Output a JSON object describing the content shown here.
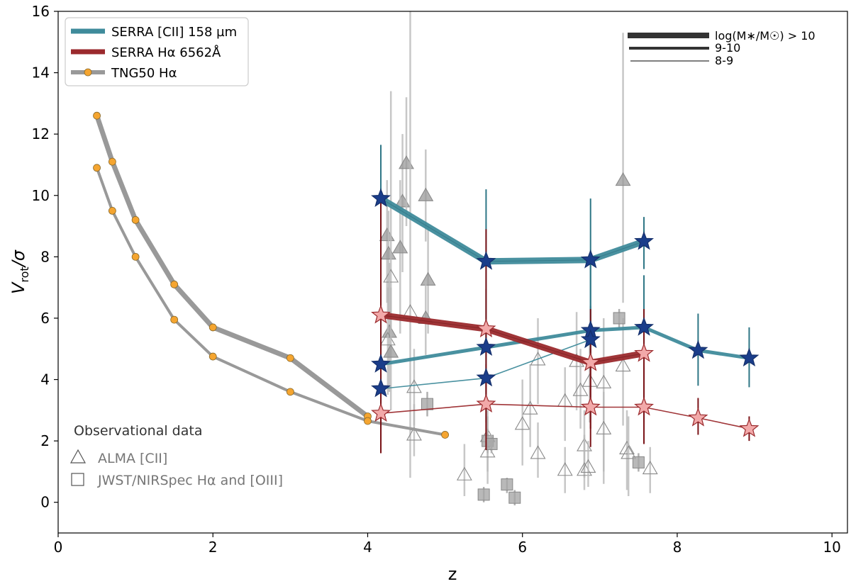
{
  "chart_data": {
    "type": "line",
    "xlabel": "z",
    "ylabel_main": "V",
    "ylabel_sub": "rot",
    "ylabel_tail": "/σ",
    "xlim": [
      0,
      10.2
    ],
    "ylim": [
      -1,
      16
    ],
    "xticks": [
      0,
      2,
      4,
      6,
      8,
      10
    ],
    "yticks": [
      0,
      2,
      4,
      6,
      8,
      10,
      12,
      14,
      16
    ],
    "legend": {
      "position": "top-left",
      "entries": [
        {
          "label": "SERRA [CII] 158 µm",
          "color": "#3f8b9b"
        },
        {
          "label": "SERRA Hα 6562Å",
          "color": "#9b2a2d"
        },
        {
          "label": "TNG50 Hα",
          "color": "#999999",
          "marker": "#f5a530"
        }
      ]
    },
    "mass_legend": {
      "position": "top-right",
      "entries": [
        {
          "label": "log(M∗/M☉) > 10",
          "bin": "high"
        },
        {
          "label": "9-10",
          "bin": "mid"
        },
        {
          "label": "8-9",
          "bin": "low"
        }
      ]
    },
    "obs_legend": {
      "title": "Observational data",
      "entries": [
        {
          "label": "ALMA [CII]",
          "marker": "triangle"
        },
        {
          "label": "JWST/NIRSpec Hα and [OIII]",
          "marker": "square"
        }
      ]
    },
    "series": [
      {
        "name": "TNG50 Hα",
        "bin": "mid",
        "color": "#999999",
        "marker_color": "#f5a530",
        "x": [
          0.5,
          0.7,
          1.0,
          1.5,
          2.0,
          3.0,
          4.0
        ],
        "y": [
          12.6,
          11.1,
          9.2,
          7.1,
          5.7,
          4.7,
          2.8
        ]
      },
      {
        "name": "TNG50 Hα",
        "bin": "low",
        "color": "#999999",
        "marker_color": "#f5a530",
        "x": [
          0.5,
          0.7,
          1.0,
          1.5,
          2.0,
          3.0,
          4.0,
          5.0
        ],
        "y": [
          10.9,
          9.5,
          8.0,
          5.95,
          4.75,
          3.6,
          2.65,
          2.2
        ]
      },
      {
        "name": "SERRA [CII] 158 µm",
        "bin": "high",
        "color": "#3f8b9b",
        "x": [
          4.17,
          5.53,
          6.88,
          7.57
        ],
        "y": [
          9.9,
          7.85,
          7.9,
          8.5
        ],
        "err_lo": [
          8.1,
          5.3,
          5.6,
          7.6
        ],
        "err_hi": [
          11.65,
          10.2,
          9.9,
          9.3
        ]
      },
      {
        "name": "SERRA [CII] 158 µm",
        "bin": "mid",
        "color": "#3f8b9b",
        "x": [
          4.17,
          5.53,
          6.88,
          7.57,
          8.27,
          8.93
        ],
        "y": [
          4.5,
          5.05,
          5.6,
          5.7,
          4.95,
          4.7
        ],
        "err_lo": [
          2.5,
          3.1,
          4.5,
          4.0,
          3.8,
          3.75
        ],
        "err_hi": [
          6.3,
          6.95,
          8.0,
          7.4,
          6.15,
          5.7
        ]
      },
      {
        "name": "SERRA [CII] 158 µm",
        "bin": "low",
        "color": "#3f8b9b",
        "x": [
          4.17,
          5.53,
          6.88
        ],
        "y": [
          3.7,
          4.05,
          5.3
        ],
        "err_lo": [
          2.0,
          2.6,
          4.3
        ],
        "err_hi": [
          5.3,
          5.7,
          6.4
        ]
      },
      {
        "name": "SERRA Hα 6562Å",
        "bin": "high",
        "color": "#9b2a2d",
        "x": [
          4.17,
          5.53,
          6.88,
          7.57
        ],
        "y": [
          6.1,
          5.65,
          4.55,
          4.85
        ],
        "err_lo": [
          1.6,
          2.2,
          2.4,
          2.6
        ],
        "err_hi": [
          9.9,
          8.9,
          6.3,
          6.3
        ]
      },
      {
        "name": "SERRA Hα 6562Å",
        "bin": "low",
        "color": "#9b2a2d",
        "x": [
          4.17,
          5.53,
          6.88,
          7.57,
          8.27,
          8.93
        ],
        "y": [
          2.9,
          3.2,
          3.1,
          3.1,
          2.75,
          2.4
        ],
        "err_lo": [
          1.6,
          1.7,
          1.8,
          1.9,
          2.2,
          2.0
        ],
        "err_hi": [
          4.2,
          4.5,
          5.0,
          4.4,
          3.4,
          2.8
        ]
      }
    ],
    "obs_alma": [
      {
        "x": 4.25,
        "y": 8.7,
        "filled": true,
        "lo": 6.5,
        "hi": 10.5
      },
      {
        "x": 4.27,
        "y": 8.1,
        "filled": true,
        "lo": 6.0,
        "hi": 9.5
      },
      {
        "x": 4.3,
        "y": 7.35,
        "filled": false,
        "lo": 5.5,
        "hi": 13.4
      },
      {
        "x": 4.28,
        "y": 5.55,
        "filled": true,
        "lo": 3.6,
        "hi": 7.8
      },
      {
        "x": 4.26,
        "y": 5.3,
        "filled": false,
        "lo": 3.5,
        "hi": 7.0
      },
      {
        "x": 4.3,
        "y": 4.9,
        "filled": true,
        "lo": 3.0,
        "hi": 7.0
      },
      {
        "x": 4.45,
        "y": 9.8,
        "filled": true,
        "lo": 7.5,
        "hi": 12.0
      },
      {
        "x": 4.5,
        "y": 11.05,
        "filled": true,
        "lo": 9.0,
        "hi": 13.2
      },
      {
        "x": 4.42,
        "y": 8.3,
        "filled": true,
        "lo": 5.5,
        "hi": 10.5
      },
      {
        "x": 4.55,
        "y": 6.2,
        "filled": false,
        "lo": 0.8,
        "hi": 16.0
      },
      {
        "x": 4.75,
        "y": 10.0,
        "filled": true,
        "lo": 8.5,
        "hi": 11.5
      },
      {
        "x": 4.78,
        "y": 7.25,
        "filled": true,
        "lo": 5.5,
        "hi": 9.0
      },
      {
        "x": 4.75,
        "y": 6.0,
        "filled": true,
        "lo": 4.8,
        "hi": 7.2
      },
      {
        "x": 4.6,
        "y": 3.75,
        "filled": false,
        "lo": 2.5,
        "hi": 5.0
      },
      {
        "x": 4.6,
        "y": 2.2,
        "filled": false,
        "lo": 1.5,
        "hi": 3.2
      },
      {
        "x": 5.25,
        "y": 0.9,
        "filled": false,
        "lo": 0.2,
        "hi": 1.9
      },
      {
        "x": 5.55,
        "y": 2.15,
        "filled": false,
        "lo": 1.0,
        "hi": 3.0
      },
      {
        "x": 5.55,
        "y": 1.65,
        "filled": false,
        "lo": 0.6,
        "hi": 2.8
      },
      {
        "x": 6.0,
        "y": 2.55,
        "filled": false,
        "lo": 1.2,
        "hi": 4.0
      },
      {
        "x": 6.1,
        "y": 3.05,
        "filled": false,
        "lo": 1.8,
        "hi": 4.5
      },
      {
        "x": 6.2,
        "y": 4.65,
        "filled": false,
        "lo": 3.2,
        "hi": 6.0
      },
      {
        "x": 6.2,
        "y": 1.6,
        "filled": false,
        "lo": 0.8,
        "hi": 2.6
      },
      {
        "x": 6.55,
        "y": 1.05,
        "filled": false,
        "lo": 0.3,
        "hi": 1.8
      },
      {
        "x": 6.55,
        "y": 3.3,
        "filled": false,
        "lo": 2.0,
        "hi": 4.4
      },
      {
        "x": 6.7,
        "y": 4.6,
        "filled": false,
        "lo": 3.0,
        "hi": 6.2
      },
      {
        "x": 6.75,
        "y": 3.65,
        "filled": false,
        "lo": 2.4,
        "hi": 5.0
      },
      {
        "x": 6.8,
        "y": 1.85,
        "filled": false,
        "lo": 0.8,
        "hi": 3.0
      },
      {
        "x": 6.8,
        "y": 1.05,
        "filled": false,
        "lo": 0.4,
        "hi": 2.2
      },
      {
        "x": 6.85,
        "y": 1.15,
        "filled": false,
        "lo": 0.5,
        "hi": 2.0
      },
      {
        "x": 6.87,
        "y": 3.95,
        "filled": false,
        "lo": 2.6,
        "hi": 5.3
      },
      {
        "x": 7.05,
        "y": 3.9,
        "filled": false,
        "lo": 0.6,
        "hi": 6.0
      },
      {
        "x": 7.05,
        "y": 2.4,
        "filled": false,
        "lo": 1.0,
        "hi": 3.6
      },
      {
        "x": 7.3,
        "y": 10.5,
        "filled": true,
        "lo": 6.5,
        "hi": 15.3
      },
      {
        "x": 7.3,
        "y": 4.45,
        "filled": false,
        "lo": 2.5,
        "hi": 6.0
      },
      {
        "x": 7.35,
        "y": 1.75,
        "filled": false,
        "lo": 0.4,
        "hi": 3.0
      },
      {
        "x": 7.37,
        "y": 1.6,
        "filled": false,
        "lo": 0.2,
        "hi": 2.8
      },
      {
        "x": 7.65,
        "y": 1.1,
        "filled": false,
        "lo": 0.3,
        "hi": 1.8
      }
    ],
    "obs_jwst": [
      {
        "x": 4.77,
        "y": 3.2,
        "lo": 2.8,
        "hi": 3.6
      },
      {
        "x": 5.5,
        "y": 0.25,
        "lo": 0.0,
        "hi": 0.5
      },
      {
        "x": 5.55,
        "y": 2.0,
        "lo": 1.6,
        "hi": 2.4
      },
      {
        "x": 5.6,
        "y": 1.9,
        "lo": 1.6,
        "hi": 2.2
      },
      {
        "x": 5.8,
        "y": 0.58,
        "lo": 0.3,
        "hi": 0.8
      },
      {
        "x": 5.9,
        "y": 0.15,
        "lo": -0.1,
        "hi": 0.4
      },
      {
        "x": 7.25,
        "y": 6.0,
        "lo": 5.7,
        "hi": 6.3
      },
      {
        "x": 7.5,
        "y": 1.3,
        "lo": 1.0,
        "hi": 1.6
      }
    ]
  }
}
